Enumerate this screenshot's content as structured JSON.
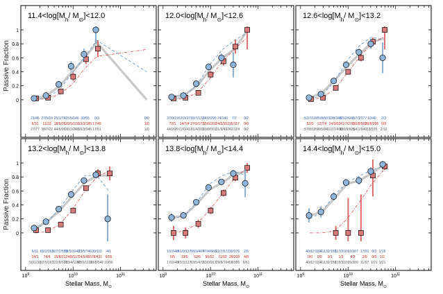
{
  "chart_data": {
    "type": "scatter",
    "ylabel": "Passive Fraction",
    "xlabel_main": "Stellar Mass, M",
    "xlabel_sub": "⊙",
    "ylim": [
      -0.12,
      1.05
    ],
    "xlim_log10": [
      8.9,
      11.75
    ],
    "x_tick_labels": [
      {
        "base": "10",
        "exp": "9",
        "logx": 9
      },
      {
        "base": "10",
        "exp": "10",
        "logx": 10
      },
      {
        "base": "10",
        "exp": "11",
        "logx": 11
      }
    ],
    "y_tick_labels": [
      "0",
      "0.2",
      "0.4",
      "0.6",
      "0.8",
      "1"
    ],
    "y_tick_values": [
      0,
      0.2,
      0.4,
      0.6,
      0.8,
      1.0
    ],
    "series_names": [
      "blue circles",
      "red squares",
      "blue dashed",
      "red dash-dot",
      "grey thick"
    ],
    "colors": {
      "blue": "#6e9cc6",
      "blue_fill": "#8fb5da",
      "red": "#d24a4a",
      "red_fill": "#d97a7a",
      "grey": "#c8c8c8",
      "text_blue": "#2d5ea5",
      "text_red": "#c8281e",
      "text_grey": "#555555"
    },
    "panels": [
      {
        "title_lo": "11.4<log[M",
        "title_mid": "/ M",
        "title_hi": "]<12.0",
        "mass_log": [
          9.2,
          9.45,
          9.72,
          9.98,
          10.25,
          10.5,
          10.75,
          11.0,
          11.55
        ],
        "blue": [
          0.02,
          0.06,
          0.22,
          0.48,
          0.65,
          1.0,
          null,
          null,
          null
        ],
        "blue_err": [
          0.02,
          0.03,
          0.05,
          0.07,
          0.08,
          0.2,
          null,
          null,
          null
        ],
        "red": [
          0.02,
          0.03,
          0.12,
          0.33,
          0.58,
          0.73,
          null,
          null,
          0.0
        ],
        "red_err": [
          0.02,
          0.02,
          0.04,
          0.06,
          0.07,
          0.12,
          null,
          null,
          0.52
        ],
        "blue_pts_log": [
          9.2,
          9.45,
          9.72,
          9.98,
          10.25,
          10.5
        ],
        "red_pts_log": [
          9.2,
          9.45,
          9.72,
          9.98,
          10.25,
          10.5,
          11.55
        ],
        "grey_line": [
          0.02,
          0.06,
          0.2,
          0.4,
          0.6,
          0.82,
          0.0
        ],
        "grey_line_log": [
          9.2,
          9.45,
          9.72,
          9.98,
          10.25,
          10.5,
          11.55
        ],
        "dash_blue": [
          0.0,
          0.03,
          0.15,
          0.38,
          0.62,
          0.85,
          0.4
        ],
        "dash_blue_log": [
          9.2,
          9.45,
          9.72,
          9.98,
          10.25,
          10.5,
          11.55
        ],
        "dashdot_red": [
          0.0,
          0.02,
          0.08,
          0.22,
          0.45,
          0.62,
          0.72
        ],
        "dashdot_red_log": [
          9.2,
          9.45,
          9.72,
          9.98,
          10.25,
          10.5,
          11.55
        ],
        "counts_blue": [
          "21/45",
          "27/5/19",
          "25/1/74",
          "15/5/146",
          "30/55",
          "0/3",
          "0/0"
        ],
        "counts_red": [
          "6/31",
          "11/33",
          "18/5/25",
          "20/5/100",
          "13/3/185",
          "17/49",
          "1/0"
        ],
        "counts_grey": [
          "27/77",
          "38/7/22",
          "44/6/99",
          "36/3/248",
          "16/3/245",
          "17/51",
          "1/0"
        ],
        "counts_log": [
          9.2,
          9.45,
          9.72,
          9.98,
          10.25,
          10.5,
          11.55
        ]
      },
      {
        "title_lo": "12.0<log[M",
        "title_mid": "/ M",
        "title_hi": "]<12.6",
        "blue_pts_log": [
          9.2,
          9.45,
          9.72,
          9.98,
          10.25,
          10.5,
          10.75,
          11.0
        ],
        "blue": [
          0.04,
          0.06,
          0.23,
          0.47,
          0.6,
          0.5,
          null,
          null
        ],
        "blue_err": [
          0.02,
          0.02,
          0.04,
          0.05,
          0.06,
          0.18,
          null,
          null
        ],
        "red_pts_log": [
          9.2,
          9.45,
          9.72,
          9.98,
          10.25,
          10.5,
          10.75,
          11.0
        ],
        "red": [
          0.02,
          0.03,
          0.1,
          0.36,
          0.55,
          0.76,
          1.0,
          null
        ],
        "red_err": [
          0.02,
          0.02,
          0.03,
          0.05,
          0.06,
          0.1,
          0.28,
          null
        ],
        "grey_line": [
          0.04,
          0.07,
          0.2,
          0.42,
          0.6,
          0.72,
          0.97
        ],
        "grey_line_log": [
          9.2,
          9.45,
          9.72,
          9.98,
          10.25,
          10.5,
          10.75
        ],
        "dash_blue": [
          0.0,
          0.05,
          0.22,
          0.5,
          0.72,
          0.85,
          0.95
        ],
        "dash_blue_log": [
          9.2,
          9.45,
          9.72,
          9.98,
          10.25,
          10.5,
          10.75
        ],
        "dashdot_red": [
          0.0,
          0.02,
          0.1,
          0.3,
          0.55,
          0.72,
          0.88
        ],
        "dashdot_red_log": [
          9.2,
          9.45,
          9.72,
          9.98,
          10.25,
          10.5,
          10.75
        ],
        "counts_blue": [
          "37/0/19",
          "57/3/37",
          "55/7/172",
          "34/2/299",
          "74/140",
          "7/7",
          "0/2"
        ],
        "counts_red": [
          "72/1",
          "14/7/4",
          "27/0/171",
          "35/6/202",
          "24/5/352",
          "35/117",
          "0/0"
        ],
        "counts_grey": [
          "44/2/20",
          "72/0/41",
          "81/4/201",
          "69/8/501",
          "31/9/492",
          "42/124",
          "0/2"
        ],
        "counts_log": [
          9.2,
          9.45,
          9.72,
          9.98,
          10.25,
          10.5,
          10.75
        ]
      },
      {
        "title_lo": "12.6<log[M",
        "title_mid": "/ M",
        "title_hi": "]<13.2",
        "blue_pts_log": [
          9.2,
          9.45,
          9.72,
          9.98,
          10.25,
          10.5,
          10.75,
          11.0
        ],
        "blue": [
          0.03,
          0.08,
          0.27,
          0.5,
          0.68,
          0.8,
          0.6,
          null
        ],
        "blue_err": [
          0.02,
          0.02,
          0.03,
          0.04,
          0.05,
          0.07,
          0.22,
          null
        ],
        "red_pts_log": [
          9.2,
          9.45,
          9.72,
          9.98,
          10.25,
          10.5,
          10.75
        ],
        "red": [
          0.01,
          0.03,
          0.17,
          0.4,
          0.6,
          0.83,
          1.0
        ],
        "red_err": [
          0.02,
          0.02,
          0.03,
          0.04,
          0.05,
          0.06,
          0.28
        ],
        "grey_line": [
          0.03,
          0.1,
          0.28,
          0.48,
          0.66,
          0.82,
          0.88
        ],
        "grey_line_log": [
          9.2,
          9.45,
          9.72,
          9.98,
          10.25,
          10.5,
          10.75
        ],
        "dash_blue": [
          0.01,
          0.06,
          0.27,
          0.56,
          0.78,
          0.9,
          0.85
        ],
        "dash_blue_log": [
          9.2,
          9.45,
          9.72,
          9.98,
          10.25,
          10.5,
          10.75
        ],
        "dashdot_red": [
          0.0,
          0.03,
          0.15,
          0.38,
          0.62,
          0.8,
          0.9
        ],
        "dashdot_red_log": [
          9.2,
          9.45,
          9.72,
          9.98,
          10.25,
          10.5,
          10.75
        ],
        "counts_blue": [
          "52/7/18",
          "85/8/60",
          "92/8/348",
          "65/2/648",
          "17/3/377",
          "10/40",
          "2/3"
        ],
        "counts_red": [
          "52/0",
          "12/7/4",
          "24/9/52",
          "41/7/278",
          "36/8/569",
          "29/5/295",
          "0/9"
        ],
        "counts_grey": [
          "57/8/18",
          "98/5/84",
          "117/7/400",
          "106/9/925",
          "54/1/946",
          "53/335",
          "2/12"
        ],
        "counts_log": [
          9.2,
          9.45,
          9.72,
          9.98,
          10.25,
          10.5,
          10.75
        ]
      },
      {
        "title_lo": "13.2<log[M",
        "title_mid": "/ M",
        "title_hi": "]<13.8",
        "blue_pts_log": [
          9.2,
          9.45,
          9.72,
          9.98,
          10.25,
          10.5,
          10.75,
          11.0
        ],
        "blue": [
          0.07,
          0.16,
          0.34,
          0.55,
          0.75,
          0.83,
          0.2,
          null
        ],
        "blue_err": [
          0.02,
          0.02,
          0.03,
          0.04,
          0.04,
          0.05,
          0.35,
          null
        ],
        "red_pts_log": [
          9.2,
          9.45,
          9.72,
          9.98,
          10.25,
          10.5,
          10.75
        ],
        "red": [
          0.04,
          0.04,
          0.12,
          0.32,
          0.64,
          0.85,
          0.85
        ],
        "red_err": [
          0.02,
          0.02,
          0.03,
          0.04,
          0.04,
          0.06,
          0.1
        ],
        "grey_line": [
          0.07,
          0.16,
          0.32,
          0.52,
          0.72,
          0.82,
          0.82
        ],
        "grey_line_log": [
          9.2,
          9.45,
          9.72,
          9.98,
          10.25,
          10.5,
          10.75
        ],
        "dash_blue": [
          0.05,
          0.15,
          0.35,
          0.6,
          0.82,
          0.82,
          0.6
        ],
        "dash_blue_log": [
          9.2,
          9.45,
          9.72,
          9.98,
          10.25,
          10.5,
          10.75
        ],
        "dashdot_red": [
          0.0,
          0.02,
          0.12,
          0.33,
          0.6,
          0.8,
          0.88
        ],
        "dashdot_red_log": [
          9.2,
          9.45,
          9.72,
          9.98,
          10.25,
          10.5,
          10.75
        ],
        "counts_blue": [
          "6/11",
          "69/2/163",
          "107/2/559",
          "79/5/1040",
          "23/5/746",
          "39/111",
          "4/1"
        ],
        "counts_red": [
          "24/1",
          "74/4",
          "15/8/21",
          "24/8/117",
          "24/5/455",
          "78/431",
          "6/55"
        ],
        "counts_grey": [
          "50/1/38",
          "92/5/167",
          "122/8/578",
          "103/4/1157",
          "48/0/1195",
          "10/8/542",
          "10/56"
        ],
        "counts_log": [
          9.2,
          9.45,
          9.72,
          9.98,
          10.25,
          10.5,
          10.75
        ]
      },
      {
        "title_lo": "13.8<log[M",
        "title_mid": "/ M",
        "title_hi": "]<14.4",
        "blue_pts_log": [
          9.2,
          9.45,
          9.72,
          9.98,
          10.25,
          10.5,
          10.75,
          11.0
        ],
        "blue": [
          0.22,
          0.25,
          0.44,
          0.65,
          0.73,
          0.85,
          0.71,
          null
        ],
        "blue_err": [
          0.06,
          0.04,
          0.03,
          0.03,
          0.03,
          0.05,
          0.2,
          null
        ],
        "red_pts_log": [
          9.2,
          9.45,
          9.72,
          9.98,
          10.25,
          10.5,
          10.75
        ],
        "red": [
          0.0,
          0.0,
          0.13,
          0.32,
          0.57,
          0.79,
          0.93
        ],
        "red_err": [
          0.1,
          0.08,
          0.06,
          0.05,
          0.05,
          0.05,
          0.07
        ],
        "grey_line": [
          0.22,
          0.25,
          0.42,
          0.62,
          0.72,
          0.84,
          0.88
        ],
        "grey_line_log": [
          9.2,
          9.45,
          9.72,
          9.98,
          10.25,
          10.5,
          10.75
        ],
        "dash_blue": [
          0.2,
          0.25,
          0.45,
          0.7,
          0.82,
          0.88,
          0.82
        ],
        "dash_blue_log": [
          9.2,
          9.45,
          9.72,
          9.98,
          10.25,
          10.5,
          10.75
        ],
        "dashdot_red": [
          0.0,
          0.03,
          0.13,
          0.33,
          0.56,
          0.78,
          0.92
        ],
        "dashdot_red_log": [
          9.2,
          9.45,
          9.72,
          9.98,
          10.25,
          10.5,
          10.75
        ],
        "counts_blue": [
          "16/7/48",
          "41/0/137",
          "58/3/467",
          "47/4/665",
          "22/7/672",
          "30/176",
          "2/5"
        ],
        "counts_red": [
          "0/5",
          "19/0",
          "52/5",
          "56/52",
          "71/92",
          "28/208",
          "4/8"
        ],
        "counts_grey": [
          "17/2/48",
          "43/3/137",
          "63/5/472",
          "53/0/917",
          "29/8/764",
          "58/385",
          "6/61"
        ],
        "counts_log": [
          9.2,
          9.45,
          9.72,
          9.98,
          10.25,
          10.5,
          10.75
        ]
      },
      {
        "title_lo": "14.4<log[M",
        "title_mid": "/ M",
        "title_hi": "]<15.0",
        "blue_pts_log": [
          9.2,
          9.45,
          9.72,
          9.98,
          10.25,
          10.5,
          10.75
        ],
        "blue": [
          0.25,
          0.3,
          0.52,
          0.72,
          0.75,
          0.88,
          0.98
        ],
        "blue_err": [
          0.1,
          0.08,
          0.06,
          0.05,
          0.06,
          0.06,
          0.05
        ],
        "red_pts_log": [
          9.2,
          9.45,
          9.72,
          9.98,
          10.25,
          10.5,
          10.75
        ],
        "red": [
          null,
          null,
          0.0,
          0.0,
          0.0,
          0.82,
          0.95
        ],
        "red_err": [
          null,
          null,
          0.1,
          0.5,
          0.55,
          0.3,
          0.05
        ],
        "grey_line": [
          0.25,
          0.3,
          0.5,
          0.7,
          0.75,
          0.86,
          0.97
        ],
        "grey_line_log": [
          9.2,
          9.45,
          9.72,
          9.98,
          10.25,
          10.5,
          10.75
        ],
        "dash_blue": [
          0.2,
          0.3,
          0.55,
          0.72,
          0.82,
          0.9,
          0.95
        ],
        "dash_blue_log": [
          9.2,
          9.45,
          9.72,
          9.98,
          10.25,
          10.5,
          10.75
        ],
        "dashdot_red": [
          0.0,
          0.0,
          0.03,
          0.2,
          0.45,
          0.7,
          0.9
        ],
        "dashdot_red_log": [
          9.2,
          9.45,
          9.72,
          9.98,
          10.25,
          10.5,
          10.75
        ],
        "counts_blue": [
          "40/12",
          "93/41",
          "132/155",
          "117/310",
          "61/307",
          "17/91",
          "0/2",
          "1/19"
        ],
        "counts_red": [
          "0/0",
          "0/0",
          "0/1",
          "1/3",
          "4/2",
          "2/9",
          "0/0",
          "1/2"
        ],
        "counts_grey": [
          "40/12",
          "93/41",
          "132/156",
          "118/310",
          "65/309",
          "11/97",
          "1/21",
          "1/21"
        ],
        "counts_log": [
          9.2,
          9.4,
          9.62,
          9.85,
          10.1,
          10.35,
          10.55,
          10.72
        ]
      }
    ]
  }
}
